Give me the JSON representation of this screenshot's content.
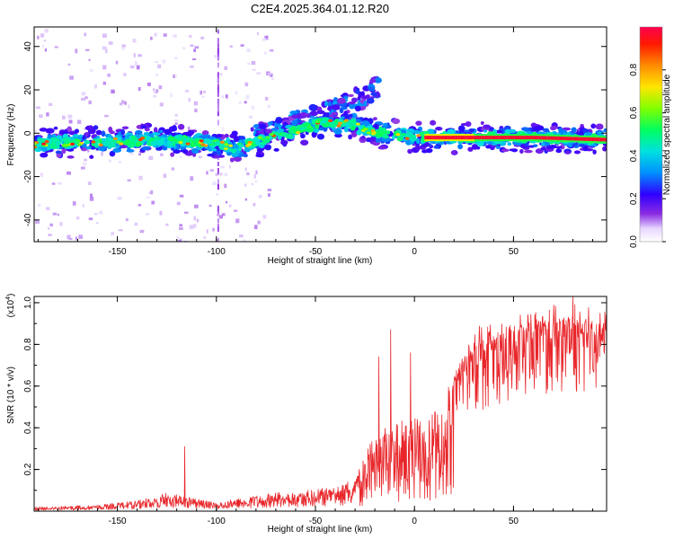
{
  "figure": {
    "title": "C2E4.2025.364.01.12.R20"
  },
  "colors": {
    "snr_line": "#e8262a",
    "axis": "#000000",
    "background": "#ffffff"
  },
  "chart_data": [
    {
      "id": "spectrogram",
      "type": "heatmap",
      "title": "C2E4.2025.364.01.12.R20",
      "xlabel": "Height of straight line (km)",
      "ylabel": "Frequency (Hz)",
      "xlim": [
        -192,
        97
      ],
      "ylim": [
        -50,
        49
      ],
      "xticks": [
        -150,
        -100,
        -50,
        0,
        50
      ],
      "yticks": [
        -40,
        -20,
        0,
        20,
        40
      ],
      "xtick_labels": [
        "-150",
        "-100",
        "-50",
        "0",
        "50"
      ],
      "ytick_labels": [
        "-40",
        "-20",
        "0",
        "20",
        "40"
      ],
      "ridge": [
        {
          "x": -192,
          "f": -5
        },
        {
          "x": -170,
          "f": -4
        },
        {
          "x": -150,
          "f": -4
        },
        {
          "x": -130,
          "f": -3
        },
        {
          "x": -110,
          "f": -4
        },
        {
          "x": -100,
          "f": -5
        },
        {
          "x": -90,
          "f": -7
        },
        {
          "x": -80,
          "f": -4
        },
        {
          "x": -70,
          "f": -1
        },
        {
          "x": -60,
          "f": 1
        },
        {
          "x": -50,
          "f": 4
        },
        {
          "x": -40,
          "f": 5
        },
        {
          "x": -30,
          "f": 4
        },
        {
          "x": -25,
          "f": 2
        },
        {
          "x": -15,
          "f": 0
        },
        {
          "x": 0,
          "f": -2
        },
        {
          "x": 20,
          "f": -2
        },
        {
          "x": 60,
          "f": -2
        },
        {
          "x": 97,
          "f": -3
        }
      ],
      "scatter_branch": [
        {
          "x": -75,
          "f": 0
        },
        {
          "x": -60,
          "f": 5
        },
        {
          "x": -45,
          "f": 9
        },
        {
          "x": -35,
          "f": 13
        },
        {
          "x": -25,
          "f": 17
        },
        {
          "x": -20,
          "f": 22
        }
      ],
      "colorbar": {
        "label": "Normalized spectral amplitude",
        "range": [
          0,
          1
        ],
        "ticks": [
          0,
          0.2,
          0.4,
          0.6,
          0.8
        ],
        "tick_labels": [
          "0.0",
          "0.2",
          "0.4",
          "0.6",
          "0.8"
        ]
      }
    },
    {
      "id": "snr",
      "type": "line",
      "xlabel": "Height of straight line (km)",
      "ylabel": "SNR (10 * v/v)",
      "y_multiplier": "(x10",
      "y_multiplier_exp": "4",
      "y_multiplier_close": ")",
      "xlim": [
        -192,
        97
      ],
      "ylim": [
        0,
        1.03
      ],
      "xticks": [
        -150,
        -100,
        -50,
        0,
        50
      ],
      "yticks": [
        0.2,
        0.4,
        0.6,
        0.8,
        1.0
      ],
      "xtick_labels": [
        "-150",
        "-100",
        "-50",
        "0",
        "50"
      ],
      "ytick_labels": [
        "0.2",
        "0.4",
        "0.6",
        "0.8",
        "1.0"
      ],
      "envelope": [
        {
          "x": -192,
          "y": 0.02
        },
        {
          "x": -160,
          "y": 0.03
        },
        {
          "x": -140,
          "y": 0.05
        },
        {
          "x": -125,
          "y": 0.09
        },
        {
          "x": -115,
          "y": 0.07
        },
        {
          "x": -100,
          "y": 0.04
        },
        {
          "x": -85,
          "y": 0.07
        },
        {
          "x": -70,
          "y": 0.09
        },
        {
          "x": -55,
          "y": 0.1
        },
        {
          "x": -40,
          "y": 0.12
        },
        {
          "x": -30,
          "y": 0.16
        },
        {
          "x": -25,
          "y": 0.28
        },
        {
          "x": -20,
          "y": 0.36
        },
        {
          "x": -15,
          "y": 0.4
        },
        {
          "x": -10,
          "y": 0.42
        },
        {
          "x": 0,
          "y": 0.46
        },
        {
          "x": 10,
          "y": 0.5
        },
        {
          "x": 15,
          "y": 0.56
        },
        {
          "x": 20,
          "y": 0.64
        },
        {
          "x": 25,
          "y": 0.74
        },
        {
          "x": 30,
          "y": 0.8
        },
        {
          "x": 40,
          "y": 0.84
        },
        {
          "x": 50,
          "y": 0.88
        },
        {
          "x": 60,
          "y": 0.9
        },
        {
          "x": 75,
          "y": 0.92
        },
        {
          "x": 85,
          "y": 0.91
        },
        {
          "x": 97,
          "y": 0.89
        }
      ],
      "spikes": [
        {
          "x": -116,
          "y": 0.31
        },
        {
          "x": -18,
          "y": 0.74
        },
        {
          "x": -12,
          "y": 0.87
        },
        {
          "x": -2,
          "y": 0.76
        },
        {
          "x": 12,
          "y": 0.28
        },
        {
          "x": 80,
          "y": 1.03
        }
      ]
    }
  ]
}
